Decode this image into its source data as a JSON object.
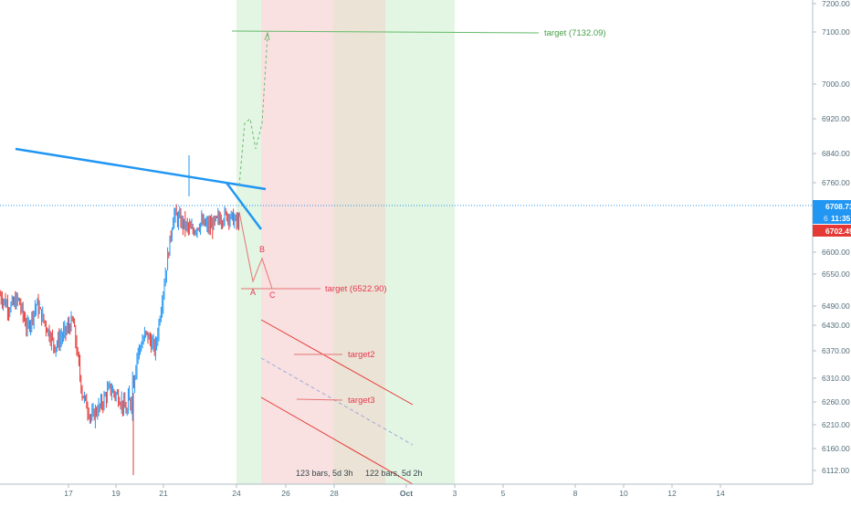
{
  "chart_data": {
    "type": "candlestick",
    "title": "",
    "xlabel": "",
    "ylabel": "",
    "ylim": [
      6085,
      7225
    ],
    "x_ticks": [
      "17",
      "19",
      "21",
      "24",
      "26",
      "28",
      "Oct",
      "3",
      "5",
      "8",
      "10",
      "12",
      "14"
    ],
    "y_ticks": [
      "7200.00",
      "7100.00",
      "7000.00",
      "6920.00",
      "6840.00",
      "6760.00",
      "6680.00",
      "6600.00",
      "6550.00",
      "6490.00",
      "6430.00",
      "6370.00",
      "6310.00",
      "6260.00",
      "6210.00",
      "6160.00",
      "6112.00"
    ],
    "price_labels": {
      "last_price": "6708.73",
      "countdown": "11:35",
      "partial_label": "6",
      "lower_price": "6702.49"
    },
    "annotations": {
      "target_main": "target (7132.09)",
      "target_1": "target (6522.90)",
      "target_2": "target2",
      "target_3": "target3",
      "wave_a": "A",
      "wave_b": "B",
      "wave_c": "C",
      "range_1": "123 bars, 5d 3h",
      "range_2": "122 bars, 5d 2h"
    },
    "key_levels": {
      "target_main": 7132.09,
      "target_1": 6522.9,
      "target_2": 6362,
      "target_3": 6264,
      "current": 6708.73
    },
    "colors": {
      "up": "#2196f3",
      "down": "#e53935",
      "trendline": "#2196f3",
      "target_main": "#4caf50",
      "target_red": "#e53950",
      "green_zone": "#e3f5e3",
      "red_zone": "#f9e1e1",
      "overlap_zone": "#ebe3d5"
    },
    "candles_sampled": [
      [
        0,
        6530
      ],
      [
        10,
        6500
      ],
      [
        20,
        6520
      ],
      [
        30,
        6450
      ],
      [
        40,
        6510
      ],
      [
        50,
        6460
      ],
      [
        60,
        6410
      ],
      [
        70,
        6440
      ],
      [
        80,
        6470
      ],
      [
        90,
        6300
      ],
      [
        100,
        6240
      ],
      [
        110,
        6270
      ],
      [
        120,
        6310
      ],
      [
        130,
        6290
      ],
      [
        140,
        6250
      ],
      [
        150,
        6390
      ],
      [
        160,
        6440
      ],
      [
        170,
        6400
      ],
      [
        180,
        6560
      ],
      [
        190,
        6720
      ],
      [
        200,
        6700
      ],
      [
        210,
        6680
      ],
      [
        220,
        6700
      ],
      [
        230,
        6690
      ],
      [
        240,
        6710
      ],
      [
        250,
        6720
      ],
      [
        260,
        6700
      ]
    ]
  }
}
